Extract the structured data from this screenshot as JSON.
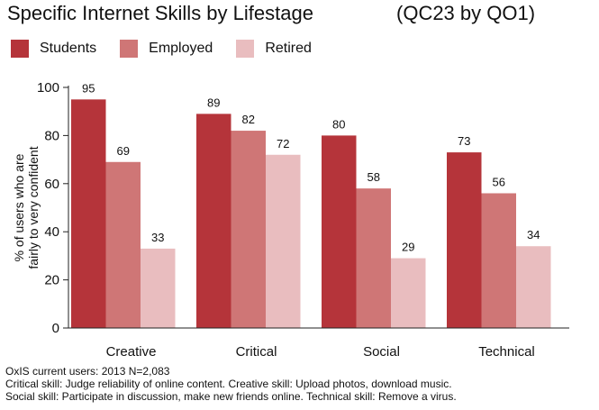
{
  "chart_data": {
    "type": "bar",
    "title": "Specific Internet Skills by Lifestage",
    "subtitle": "(QC23 by QO1)",
    "ylabel": "% of users who are fairly to very confident",
    "ylabel_lines": [
      "% of users who are",
      "fairly to very confident"
    ],
    "xlabel": "",
    "ylim": [
      0,
      100
    ],
    "yticks": [
      0,
      20,
      40,
      60,
      80,
      100
    ],
    "grid": false,
    "legend_position": "top-left",
    "categories": [
      "Creative",
      "Critical",
      "Social",
      "Technical"
    ],
    "series": [
      {
        "name": "Students",
        "color": "#b5343a",
        "values": [
          95,
          89,
          80,
          73
        ]
      },
      {
        "name": "Employed",
        "color": "#cf7676",
        "values": [
          69,
          82,
          58,
          56
        ]
      },
      {
        "name": "Retired",
        "color": "#e9bdbf",
        "values": [
          33,
          72,
          29,
          34
        ]
      }
    ]
  },
  "footer": [
    "OxIS current users: 2013 N=2,083",
    "Critical skill: Judge reliability of online content. Creative skill: Upload photos, download music.",
    "Social skill: Participate in discussion, make new friends online. Technical skill: Remove a virus."
  ]
}
